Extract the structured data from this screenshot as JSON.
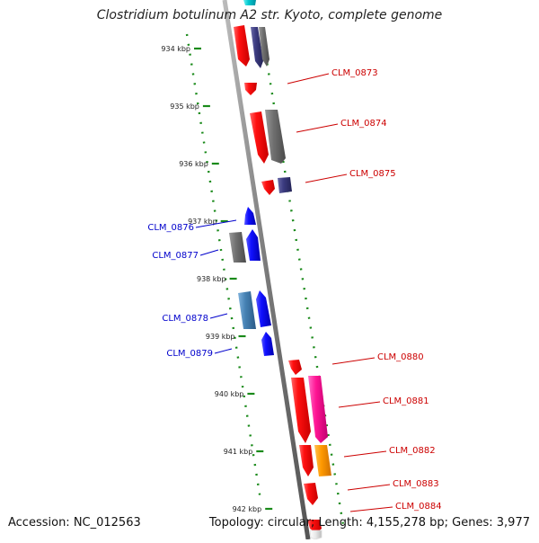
{
  "title": "Clostridium botulinum A2 str. Kyoto, complete genome",
  "footer": {
    "accession": "Accession: NC_012563",
    "summary": "Topology: circular; Length: 4,155,278 bp; Genes: 3,977"
  },
  "colors": {
    "backbone": "#8a8a8a",
    "tick": "#1a8a1a",
    "forward_label": "#cc0000",
    "reverse_label": "#0000cc"
  },
  "ruler": [
    {
      "label": "934 kbp",
      "kbp": 934
    },
    {
      "label": "935 kbp",
      "kbp": 935
    },
    {
      "label": "936 kbp",
      "kbp": 936
    },
    {
      "label": "937 kbp",
      "kbp": 937
    },
    {
      "label": "938 kbp",
      "kbp": 938
    },
    {
      "label": "939 kbp",
      "kbp": 939
    },
    {
      "label": "940 kbp",
      "kbp": 940
    },
    {
      "label": "941 kbp",
      "kbp": 941
    },
    {
      "label": "942 kbp",
      "kbp": 942
    }
  ],
  "gene_labels": [
    {
      "name": "CLM_0873",
      "strand": "forward"
    },
    {
      "name": "CLM_0874",
      "strand": "forward"
    },
    {
      "name": "CLM_0875",
      "strand": "forward"
    },
    {
      "name": "CLM_0876",
      "strand": "reverse"
    },
    {
      "name": "CLM_0877",
      "strand": "reverse"
    },
    {
      "name": "CLM_0878",
      "strand": "reverse"
    },
    {
      "name": "CLM_0879",
      "strand": "reverse"
    },
    {
      "name": "CLM_0880",
      "strand": "forward"
    },
    {
      "name": "CLM_0881",
      "strand": "forward"
    },
    {
      "name": "CLM_0882",
      "strand": "forward"
    },
    {
      "name": "CLM_0883",
      "strand": "forward"
    },
    {
      "name": "CLM_0884",
      "strand": "forward"
    }
  ]
}
